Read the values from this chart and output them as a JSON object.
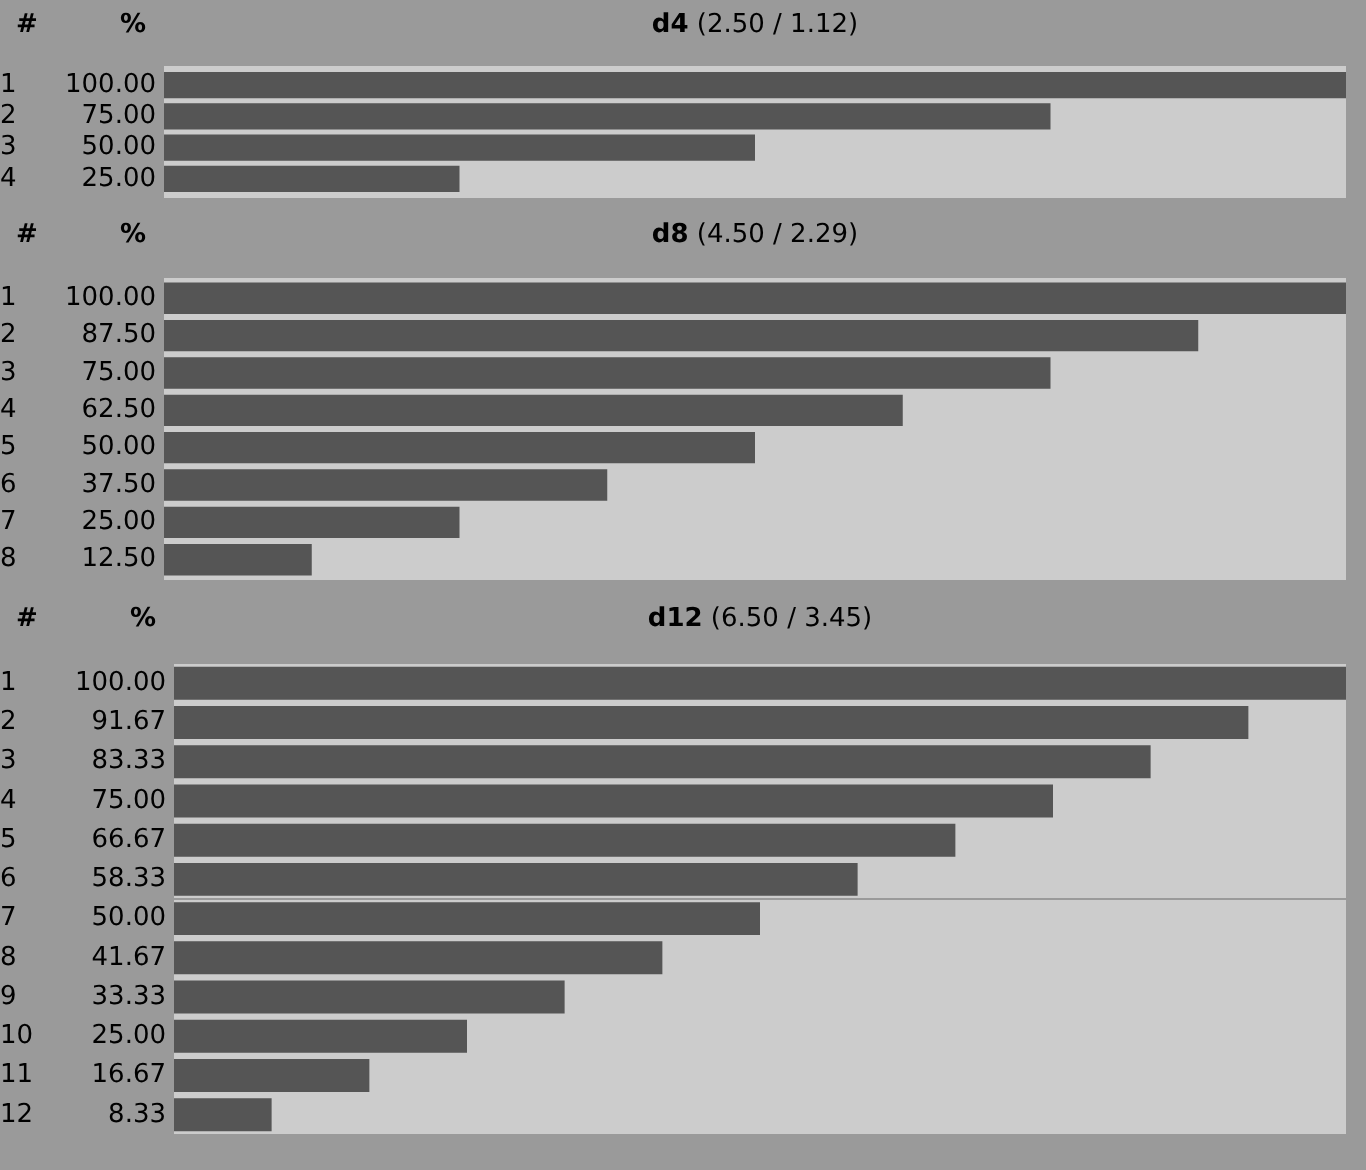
{
  "chart_data": [
    {
      "type": "bar",
      "orientation": "horizontal",
      "title": "d4 (2.50 / 1.12)",
      "annotations": [
        "#",
        "%"
      ],
      "categories": [
        "1",
        "2",
        "3",
        "4"
      ],
      "values": [
        100,
        75,
        50,
        25
      ],
      "value_labels": [
        "100.00",
        "75.00",
        "50.00",
        "25.00"
      ],
      "color": "#555555",
      "xlim": [
        0,
        100
      ],
      "tick_labels": "y",
      "legend": false
    },
    {
      "type": "bar",
      "orientation": "horizontal",
      "title": "d8 (4.50 / 2.29)",
      "annotations": [
        "#",
        "%"
      ],
      "categories": [
        "1",
        "2",
        "3",
        "4",
        "5",
        "6",
        "7",
        "8"
      ],
      "values": [
        100,
        87.5,
        75,
        62.5,
        50,
        37.5,
        25,
        12.5
      ],
      "value_labels": [
        "100.00",
        "87.50",
        "75.00",
        "62.50",
        "50.00",
        "37.50",
        "25.00",
        "12.50"
      ],
      "color": "#555555",
      "xlim": [
        0,
        100
      ],
      "tick_labels": "y",
      "legend": false
    },
    {
      "type": "bar",
      "orientation": "horizontal",
      "title": "d12 (6.50 / 3.45)",
      "annotations": [
        "#",
        "%"
      ],
      "categories": [
        "1",
        "2",
        "3",
        "4",
        "5",
        "6",
        "7",
        "8",
        "9",
        "10",
        "11",
        "12"
      ],
      "values": [
        100,
        91.67,
        83.33,
        75,
        66.67,
        58.33,
        50,
        41.67,
        33.33,
        25,
        16.67,
        8.33
      ],
      "value_labels": [
        "100.00",
        "91.67",
        "83.33",
        "75.00",
        "66.67",
        "58.33",
        "50.00",
        "41.67",
        "33.33",
        "25.00",
        "16.67",
        "8.33"
      ],
      "color": "#555555",
      "xlim": [
        0,
        100
      ],
      "tick_labels": "y",
      "legend": false
    }
  ]
}
